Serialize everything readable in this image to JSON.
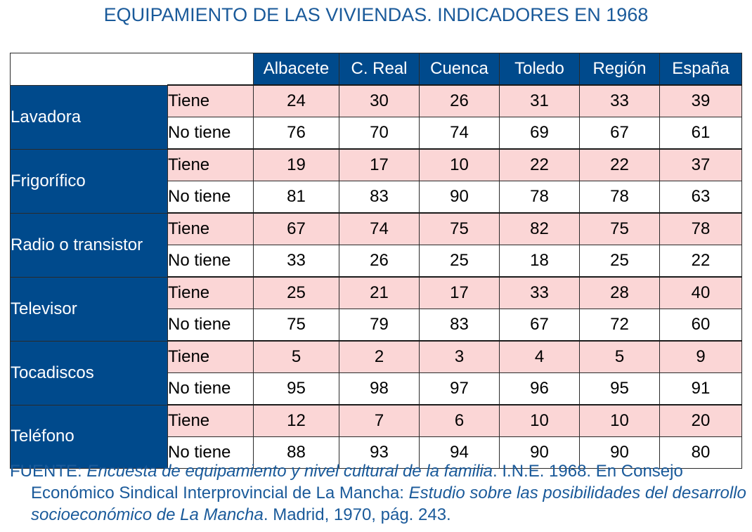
{
  "title": "EQUIPAMIENTO DE LAS VIVIENDAS. INDICADORES EN 1968",
  "columns": [
    "Albacete",
    "C. Real",
    "Cuenca",
    "Toledo",
    "Región",
    "España"
  ],
  "row_labels": {
    "tiene": "Tiene",
    "no_tiene": "No tiene"
  },
  "categories": [
    {
      "name": "Lavadora",
      "tiene": [
        "24",
        "30",
        "26",
        "31",
        "33",
        "39"
      ],
      "no_tiene": [
        "76",
        "70",
        "74",
        "69",
        "67",
        "61"
      ]
    },
    {
      "name": "Frigorífico",
      "tiene": [
        "19",
        "17",
        "10",
        "22",
        "22",
        "37"
      ],
      "no_tiene": [
        "81",
        "83",
        "90",
        "78",
        "78",
        "63"
      ]
    },
    {
      "name": "Radio o transistor",
      "tiene": [
        "67",
        "74",
        "75",
        "82",
        "75",
        "78"
      ],
      "no_tiene": [
        "33",
        "26",
        "25",
        "18",
        "25",
        "22"
      ]
    },
    {
      "name": "Televisor",
      "tiene": [
        "25",
        "21",
        "17",
        "33",
        "28",
        "40"
      ],
      "no_tiene": [
        "75",
        "79",
        "83",
        "67",
        "72",
        "60"
      ]
    },
    {
      "name": "Tocadiscos",
      "tiene": [
        "5",
        "2",
        "3",
        "4",
        "5",
        "9"
      ],
      "no_tiene": [
        "95",
        "98",
        "97",
        "96",
        "95",
        "91"
      ]
    },
    {
      "name": "Teléfono",
      "tiene": [
        "12",
        "7",
        "6",
        "10",
        "10",
        "20"
      ],
      "no_tiene": [
        "88",
        "93",
        "94",
        "90",
        "90",
        "80"
      ]
    }
  ],
  "source": {
    "prefix": "FUENTE: ",
    "italic1": "Encuesta de equipamiento y nivel cultural de la familia",
    "middle": ". I.N.E. 1968. En Consejo Económico Sindical Interprovincial de La Mancha: ",
    "italic2": "Estudio sobre las posibilidades del desarrollo socioeconómico de La Mancha",
    "suffix": ". Madrid, 1970, pág. 243."
  },
  "colors": {
    "header_blue": "#004a8c",
    "tiene_pink": "#fbd6d6",
    "text_blue": "#1a5a9a"
  }
}
